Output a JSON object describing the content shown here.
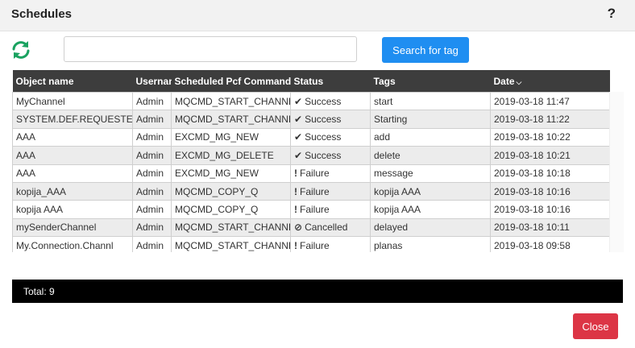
{
  "dialog": {
    "title": "Schedules",
    "help_label": "?"
  },
  "toolbar": {
    "refresh_icon": "refresh-icon",
    "search_value": "",
    "search_placeholder": "",
    "search_button": "Search for tag"
  },
  "table": {
    "headers": {
      "object_name": "Object name",
      "username": "Username",
      "command": "Scheduled Pcf Command",
      "status": "Status",
      "tags": "Tags",
      "date": "Date",
      "date_sort_icon": "chevron-down-icon"
    },
    "rows": [
      {
        "object_name": "MyChannel",
        "username": "Admin",
        "command": "MQCMD_START_CHANNEL",
        "status_icon": "✔",
        "status": "Success",
        "tags": "start",
        "date": "2019-03-18 11:47"
      },
      {
        "object_name": "SYSTEM.DEF.REQUESTER",
        "username": "Admin",
        "command": "MQCMD_START_CHANNEL",
        "status_icon": "✔",
        "status": "Success",
        "tags": "Starting",
        "date": "2019-03-18 11:22"
      },
      {
        "object_name": "AAA",
        "username": "Admin",
        "command": "EXCMD_MG_NEW",
        "status_icon": "✔",
        "status": "Success",
        "tags": "add",
        "date": "2019-03-18 10:22"
      },
      {
        "object_name": "AAA",
        "username": "Admin",
        "command": "EXCMD_MG_DELETE",
        "status_icon": "✔",
        "status": "Success",
        "tags": "delete",
        "date": "2019-03-18 10:21"
      },
      {
        "object_name": "AAA",
        "username": "Admin",
        "command": "EXCMD_MG_NEW",
        "status_icon": "!",
        "status": "Failure",
        "tags": "message",
        "date": "2019-03-18 10:18"
      },
      {
        "object_name": "kopija_AAA",
        "username": "Admin",
        "command": "MQCMD_COPY_Q",
        "status_icon": "!",
        "status": "Failure",
        "tags": "kopija AAA",
        "date": "2019-03-18 10:16"
      },
      {
        "object_name": "kopija AAA",
        "username": "Admin",
        "command": "MQCMD_COPY_Q",
        "status_icon": "!",
        "status": "Failure",
        "tags": "kopija AAA",
        "date": "2019-03-18 10:16"
      },
      {
        "object_name": "mySenderChannel",
        "username": "Admin",
        "command": "MQCMD_START_CHANNEL",
        "status_icon": "⊘",
        "status": "Cancelled",
        "tags": "delayed",
        "date": "2019-03-18 10:11"
      },
      {
        "object_name": "My.Connection.Channl",
        "username": "Admin",
        "command": "MQCMD_START_CHANNEL",
        "status_icon": "!",
        "status": "Failure",
        "tags": "planas",
        "date": "2019-03-18 09:58"
      }
    ]
  },
  "footer": {
    "total": "Total: 9"
  },
  "actions": {
    "close": "Close"
  },
  "colors": {
    "accent": "#1f8ef1",
    "refresh": "#1aa260",
    "close": "#dc3545",
    "header_bg": "#3d3d3d"
  }
}
